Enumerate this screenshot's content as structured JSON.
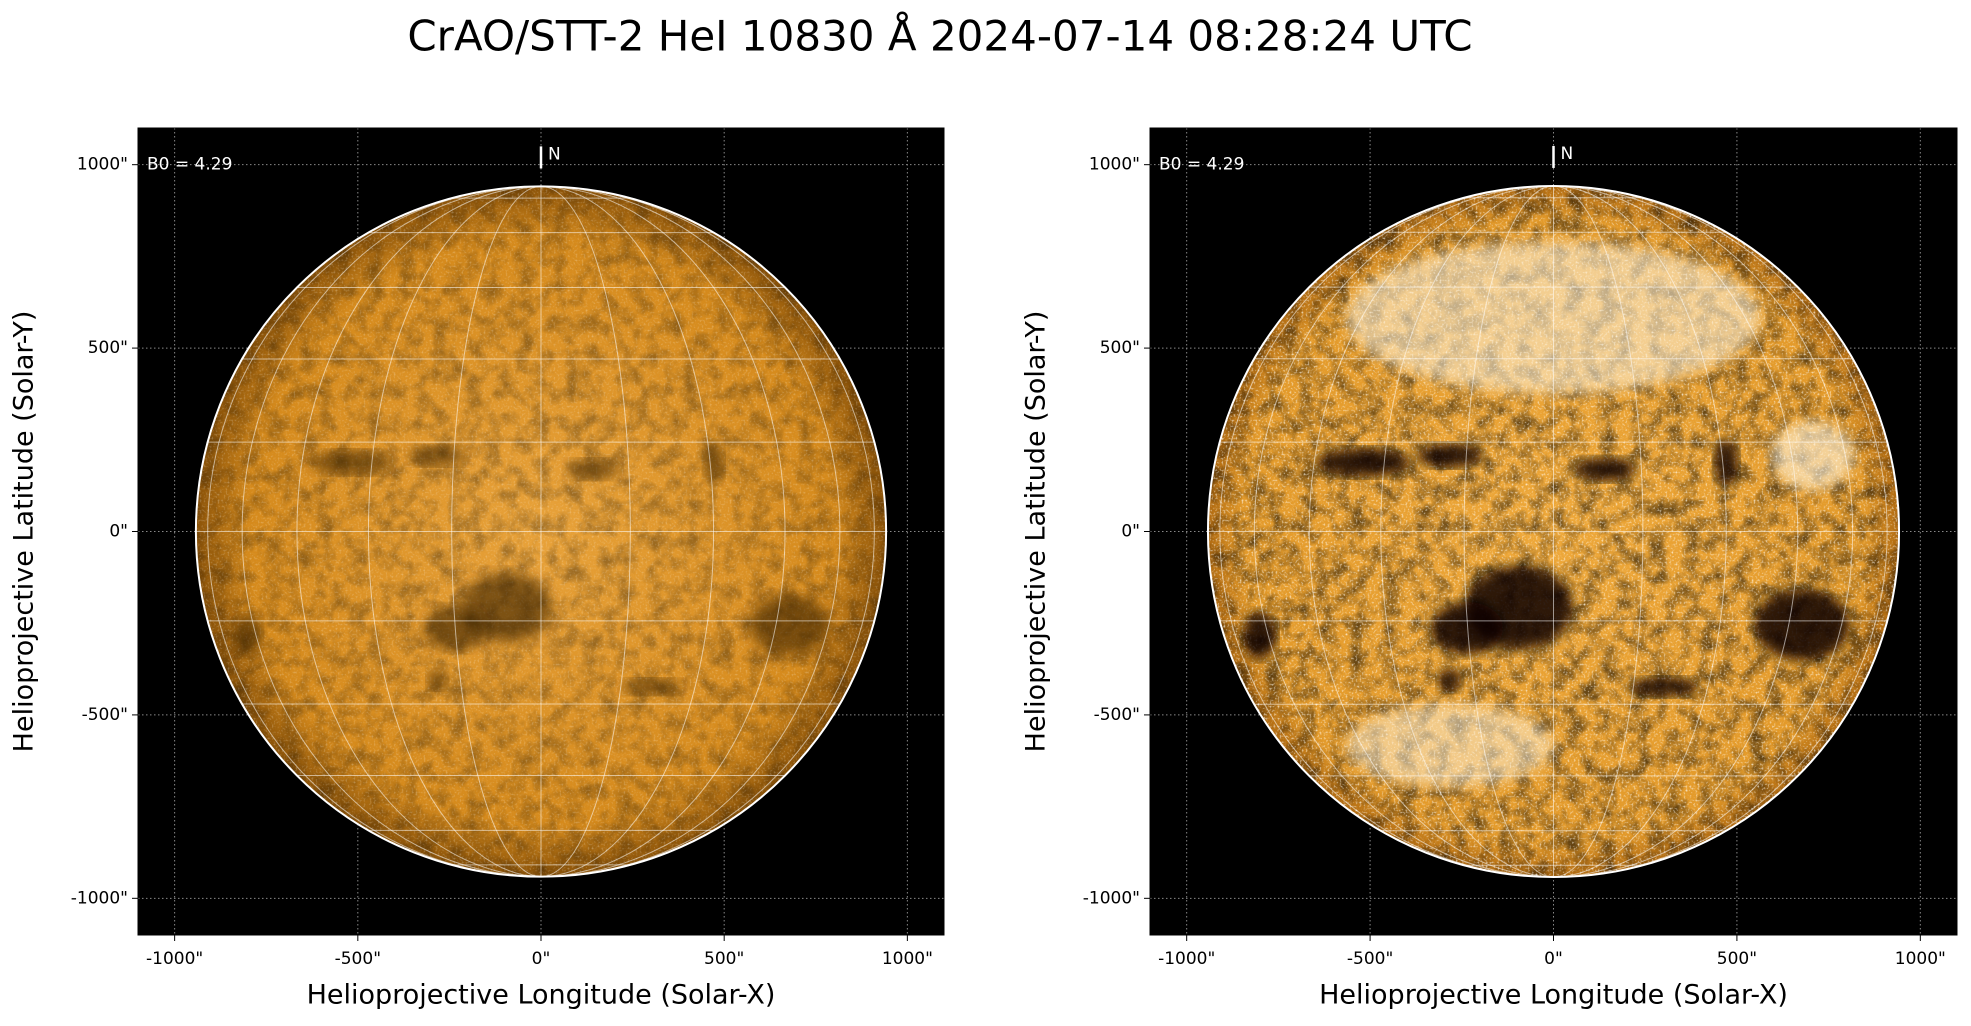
{
  "figure_title": "CrAO/STT-2 HeI 10830 Å 2024-07-14 08:28:24 UTC",
  "chart_data": [
    {
      "type": "image",
      "x_label": "Helioprojective Longitude (Solar-X)",
      "y_label": "Helioprojective Latitude (Solar-Y)",
      "annotation": "B0 = 4.29",
      "north_label": "N",
      "disk_radius": 942,
      "contrast": "normal",
      "xlim": [
        -1100,
        1100
      ],
      "ylim": [
        -1100,
        1100
      ],
      "xticks": [
        {
          "value": -1000,
          "label": "-1000\""
        },
        {
          "value": -500,
          "label": "-500\""
        },
        {
          "value": 0,
          "label": "0\""
        },
        {
          "value": 500,
          "label": "500\""
        },
        {
          "value": 1000,
          "label": "1000\""
        }
      ],
      "yticks": [
        {
          "value": -1000,
          "label": "-1000\""
        },
        {
          "value": -500,
          "label": "-500\""
        },
        {
          "value": 0,
          "label": "0\""
        },
        {
          "value": 500,
          "label": "500\""
        },
        {
          "value": 1000,
          "label": "1000\""
        }
      ],
      "grid": true
    },
    {
      "type": "image",
      "x_label": "Helioprojective Longitude (Solar-X)",
      "y_label": "Helioprojective Latitude (Solar-Y)",
      "annotation": "B0 = 4.29",
      "north_label": "N",
      "disk_radius": 942,
      "contrast": "high",
      "xlim": [
        -1100,
        1100
      ],
      "ylim": [
        -1100,
        1100
      ],
      "xticks": [
        {
          "value": -1000,
          "label": "-1000\""
        },
        {
          "value": -500,
          "label": "-500\""
        },
        {
          "value": 0,
          "label": "0\""
        },
        {
          "value": 500,
          "label": "500\""
        },
        {
          "value": 1000,
          "label": "1000\""
        }
      ],
      "yticks": [
        {
          "value": -1000,
          "label": "-1000\""
        },
        {
          "value": -500,
          "label": "-500\""
        },
        {
          "value": 0,
          "label": "0\""
        },
        {
          "value": 500,
          "label": "500\""
        },
        {
          "value": 1000,
          "label": "1000\""
        }
      ],
      "grid": true
    }
  ]
}
